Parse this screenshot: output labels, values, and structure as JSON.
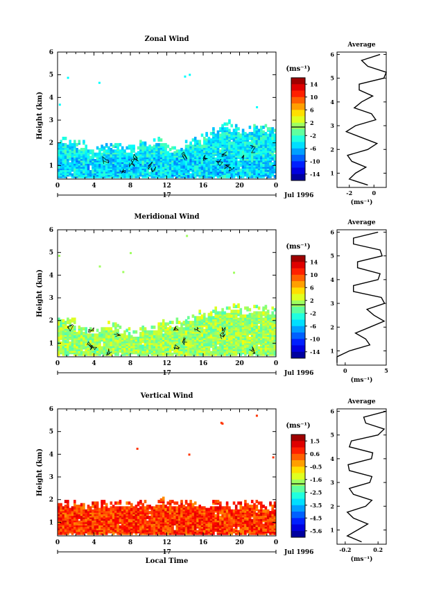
{
  "panels": [
    {
      "title": "Zonal Wind",
      "ylabel": "Height (km)",
      "xticks": [
        "0",
        "4",
        "8",
        "12",
        "16",
        "20",
        "0"
      ],
      "yticks": [
        "1",
        "2",
        "3",
        "4",
        "5",
        "6"
      ],
      "day_label": "17",
      "date_label": "Jul 1996",
      "cbar_unit": "(ms⁻¹)",
      "cbar_ticks": [
        "14",
        "10",
        "6",
        "2",
        "-2",
        "-6",
        "-10",
        "-14"
      ],
      "avg_title": "Average",
      "avg_xticks": [
        "-2",
        "0"
      ],
      "avg_unit": "(ms⁻¹)"
    },
    {
      "title": "Meridional Wind",
      "ylabel": "Height (km)",
      "xticks": [
        "0",
        "4",
        "8",
        "12",
        "16",
        "20",
        "0"
      ],
      "yticks": [
        "1",
        "2",
        "3",
        "4",
        "5",
        "6"
      ],
      "day_label": "17",
      "date_label": "Jul 1996",
      "cbar_unit": "(ms⁻¹)",
      "cbar_ticks": [
        "14",
        "10",
        "6",
        "2",
        "-2",
        "-6",
        "-10",
        "-14"
      ],
      "avg_title": "Average",
      "avg_xticks": [
        "0",
        "5"
      ],
      "avg_unit": "(ms⁻¹)"
    },
    {
      "title": "Vertical Wind",
      "ylabel": "Height (km)",
      "xticks": [
        "0",
        "4",
        "8",
        "12",
        "16",
        "20",
        "0"
      ],
      "yticks": [
        "1",
        "2",
        "3",
        "4",
        "5",
        "6"
      ],
      "day_label": "17",
      "date_label": "Jul 1996",
      "cbar_unit": "(ms⁻¹)",
      "cbar_ticks": [
        "1.5",
        "0.6",
        "-0.5",
        "-1.6",
        "-2.5",
        "-3.5",
        "-4.5",
        "-5.6"
      ],
      "avg_title": "Average",
      "avg_xticks": [
        "-0.2",
        "0.2"
      ],
      "avg_unit": "(ms⁻¹)",
      "xlabel": "Local Time"
    }
  ],
  "chart_data": [
    {
      "type": "heatmap",
      "title": "Zonal Wind",
      "ylabel": "Height (km)",
      "x_unit": "Local Time (h)",
      "xlim": [
        0,
        24
      ],
      "ylim": [
        0.4,
        6
      ],
      "colorbar": {
        "range": [
          -16,
          16
        ],
        "ticks": [
          14,
          10,
          6,
          2,
          -2,
          -6,
          -10,
          -14
        ]
      },
      "data_top_km": [
        1.9,
        1.8,
        1.7,
        1.5,
        1.5,
        1.6,
        1.6,
        1.5,
        1.5,
        1.7,
        1.8,
        1.9,
        1.5,
        1.6,
        1.8,
        2.0,
        2.1,
        2.3,
        2.6,
        2.4,
        2.3,
        2.4,
        2.4,
        2.3
      ],
      "typical_value": -4,
      "average_profile": {
        "height_km": [
          0.5,
          1.0,
          1.5,
          2.0,
          2.5,
          3.0,
          3.5,
          4.0,
          4.5,
          5.0,
          5.5,
          6.0
        ],
        "value": [
          -0.5,
          -1.5,
          -1.8,
          -0.5,
          -1.0,
          -1.5,
          -0.2,
          -1.0,
          -1.2,
          0.8,
          -0.5,
          0.5
        ],
        "xlim": [
          -3,
          1
        ]
      }
    },
    {
      "type": "heatmap",
      "title": "Meridional Wind",
      "ylabel": "Height (km)",
      "x_unit": "Local Time (h)",
      "xlim": [
        0,
        24
      ],
      "ylim": [
        0.4,
        6
      ],
      "colorbar": {
        "range": [
          -16,
          16
        ],
        "ticks": [
          14,
          10,
          6,
          2,
          -2,
          -6,
          -10,
          -14
        ]
      },
      "data_top_km": [
        1.8,
        1.7,
        1.4,
        1.3,
        1.3,
        1.6,
        1.5,
        1.3,
        1.2,
        1.4,
        1.5,
        1.8,
        1.6,
        1.7,
        1.9,
        2.1,
        2.0,
        2.2,
        2.3,
        2.4,
        2.2,
        2.3,
        2.3,
        2.2
      ],
      "typical_value": 1,
      "average_profile": {
        "height_km": [
          0.5,
          1.0,
          1.5,
          2.0,
          2.5,
          3.0,
          3.5,
          4.0,
          4.5,
          5.0,
          5.5,
          6.0
        ],
        "value": [
          -1.0,
          0.5,
          2.5,
          3.0,
          3.5,
          4.8,
          1.0,
          4.0,
          1.5,
          4.5,
          1.0,
          4.0
        ],
        "xlim": [
          -1,
          5
        ]
      }
    },
    {
      "type": "heatmap",
      "title": "Vertical Wind",
      "ylabel": "Height (km)",
      "xlabel": "Local Time",
      "x_unit": "Local Time (h)",
      "xlim": [
        0,
        24
      ],
      "ylim": [
        0.4,
        6
      ],
      "colorbar": {
        "range": [
          -6,
          2
        ],
        "ticks": [
          1.5,
          0.6,
          -0.5,
          -1.6,
          -2.5,
          -3.5,
          -4.5,
          -5.6
        ]
      },
      "data_top_km": [
        1.6,
        1.6,
        1.6,
        1.5,
        1.6,
        1.6,
        1.6,
        1.6,
        1.5,
        1.6,
        1.6,
        1.7,
        1.6,
        1.6,
        1.6,
        1.6,
        1.5,
        1.6,
        1.6,
        1.5,
        1.6,
        1.6,
        1.5,
        1.5
      ],
      "typical_value": 0.6,
      "average_profile": {
        "height_km": [
          0.5,
          1.0,
          1.5,
          2.0,
          2.5,
          3.0,
          3.5,
          4.0,
          4.5,
          5.0,
          5.5,
          6.0
        ],
        "value": [
          0.0,
          -0.05,
          -0.1,
          0.05,
          -0.1,
          0.1,
          -0.15,
          0.12,
          -0.15,
          0.2,
          0.05,
          0.3
        ],
        "xlim": [
          -0.3,
          0.3
        ]
      }
    }
  ]
}
